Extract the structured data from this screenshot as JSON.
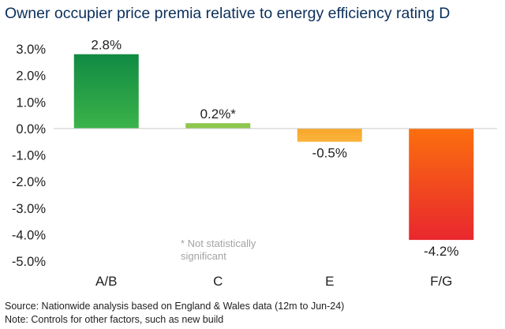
{
  "chart_data": {
    "type": "bar",
    "title": "Owner occupier price premia relative to energy efficiency rating D",
    "categories": [
      "A/B",
      "C",
      "E",
      "F/G"
    ],
    "values": [
      2.8,
      0.2,
      -0.5,
      -4.2
    ],
    "data_labels": [
      "2.8%",
      "0.2%*",
      "-0.5%",
      "-4.2%"
    ],
    "yticks": [
      3.0,
      2.0,
      1.0,
      0.0,
      -1.0,
      -2.0,
      -3.0,
      -4.0,
      -5.0
    ],
    "ytick_labels": [
      "3.0%",
      "2.0%",
      "1.0%",
      "0.0%",
      "-1.0%",
      "-2.0%",
      "-3.0%",
      "-4.0%",
      "-5.0%"
    ],
    "ylim": [
      -5.0,
      3.0
    ],
    "xlabel": "",
    "ylabel": "",
    "grid": false,
    "annotation": [
      "* Not statistically",
      "significant"
    ],
    "bar_colors": [
      {
        "top": "#108a43",
        "bottom": "#3bb34a"
      },
      {
        "top": "#8dc74d",
        "bottom": "#8dc74d"
      },
      {
        "top": "#f8a72a",
        "bottom": "#fbb33b"
      },
      {
        "top": "#fb6f0e",
        "bottom": "#e9272e"
      }
    ]
  },
  "footer": {
    "source": "Source: Nationwide analysis based on England & Wales data (12m to Jun-24)",
    "note": "Note: Controls for other factors, such as new build"
  }
}
